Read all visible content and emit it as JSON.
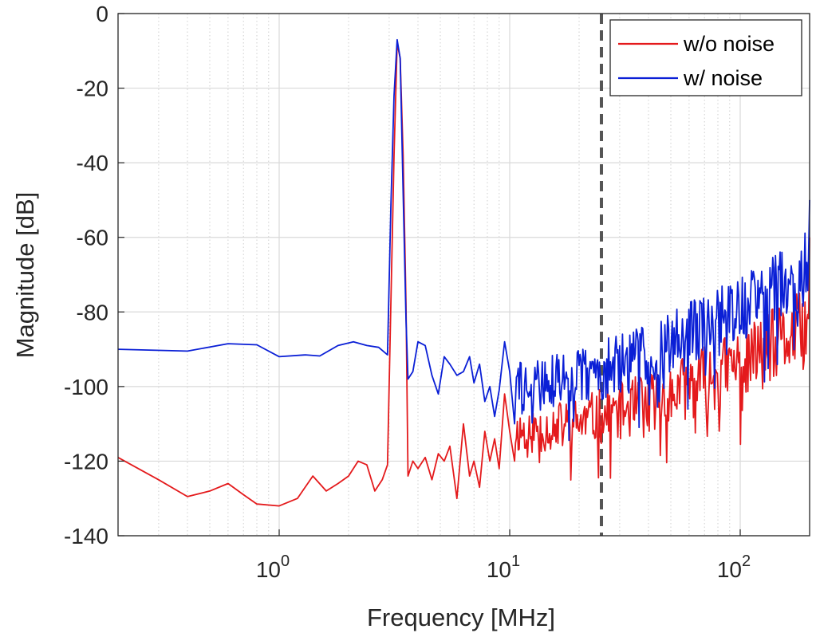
{
  "chart_data": {
    "type": "line",
    "xscale": "log",
    "xlabel": "Frequency [MHz]",
    "ylabel": "Magnitude [dB]",
    "xlim": [
      0.2,
      200
    ],
    "ylim": [
      -140,
      0
    ],
    "xticks": [
      {
        "value": 1,
        "base": "10",
        "exp": "0"
      },
      {
        "value": 10,
        "base": "10",
        "exp": "1"
      },
      {
        "value": 100,
        "base": "10",
        "exp": "2"
      }
    ],
    "yticks": [
      0,
      -20,
      -40,
      -60,
      -80,
      -100,
      -120,
      -140
    ],
    "grid": "major and minor",
    "legend_position": "top-right",
    "vline": {
      "x": 25,
      "style": "dashed",
      "color": "#555555"
    },
    "series": [
      {
        "name": "w/o noise",
        "color": "#e41a1c",
        "smooth": [
          [
            0.2,
            -119
          ],
          [
            0.3,
            -125
          ],
          [
            0.4,
            -129.5
          ],
          [
            0.5,
            -128
          ],
          [
            0.6,
            -126
          ],
          [
            0.7,
            -129
          ],
          [
            0.8,
            -131.5
          ],
          [
            1.0,
            -132
          ],
          [
            1.2,
            -130
          ],
          [
            1.4,
            -124
          ],
          [
            1.6,
            -128
          ],
          [
            1.8,
            -126
          ],
          [
            2.0,
            -124
          ],
          [
            2.2,
            -120
          ],
          [
            2.4,
            -121
          ],
          [
            2.6,
            -128
          ],
          [
            2.8,
            -125
          ],
          [
            2.95,
            -121
          ],
          [
            3.05,
            -78
          ],
          [
            3.15,
            -38
          ],
          [
            3.25,
            -8
          ],
          [
            3.35,
            -12
          ],
          [
            3.45,
            -38
          ],
          [
            3.55,
            -78
          ],
          [
            3.62,
            -124
          ],
          [
            3.8,
            -120
          ],
          [
            4.0,
            -122
          ],
          [
            4.3,
            -119
          ],
          [
            4.6,
            -125
          ],
          [
            4.9,
            -118
          ],
          [
            5.2,
            -120
          ],
          [
            5.5,
            -116
          ],
          [
            5.9,
            -130
          ],
          [
            6.3,
            -110
          ],
          [
            6.7,
            -124
          ],
          [
            7.0,
            -120
          ],
          [
            7.4,
            -127
          ],
          [
            7.8,
            -112
          ],
          [
            8.2,
            -120
          ],
          [
            8.6,
            -114
          ],
          [
            9.0,
            -122
          ],
          [
            9.5,
            -102
          ],
          [
            10.0,
            -112
          ],
          [
            10.5,
            -120
          ]
        ],
        "noise": {
          "from": 10.5,
          "to": 200,
          "points": 320,
          "base_start": -112,
          "base_end": -84,
          "amplitude_start": 6,
          "amplitude_end": 11,
          "seed": 11,
          "end_value": -60
        }
      },
      {
        "name": "w/ noise",
        "color": "#0a1fd6",
        "smooth": [
          [
            0.2,
            -90
          ],
          [
            0.4,
            -90.5
          ],
          [
            0.6,
            -88.5
          ],
          [
            0.8,
            -88.8
          ],
          [
            1.0,
            -92
          ],
          [
            1.3,
            -91.5
          ],
          [
            1.5,
            -91.8
          ],
          [
            1.8,
            -89
          ],
          [
            2.1,
            -88
          ],
          [
            2.4,
            -89
          ],
          [
            2.7,
            -89.5
          ],
          [
            2.95,
            -91.5
          ],
          [
            3.05,
            -52
          ],
          [
            3.15,
            -22
          ],
          [
            3.25,
            -7
          ],
          [
            3.35,
            -12
          ],
          [
            3.45,
            -48
          ],
          [
            3.55,
            -82
          ],
          [
            3.62,
            -98
          ],
          [
            3.8,
            -96
          ],
          [
            4.0,
            -88
          ],
          [
            4.3,
            -89
          ],
          [
            4.6,
            -97
          ],
          [
            4.9,
            -102
          ],
          [
            5.2,
            -92
          ],
          [
            5.5,
            -94
          ],
          [
            5.9,
            -97
          ],
          [
            6.3,
            -96
          ],
          [
            6.7,
            -92
          ],
          [
            7.0,
            -99
          ],
          [
            7.4,
            -94
          ],
          [
            7.8,
            -104
          ],
          [
            8.2,
            -100
          ],
          [
            8.6,
            -108
          ],
          [
            9.0,
            -101
          ],
          [
            9.5,
            -88
          ],
          [
            10.0,
            -96
          ],
          [
            10.5,
            -110
          ]
        ],
        "noise": {
          "from": 10.5,
          "to": 200,
          "points": 320,
          "base_start": -100,
          "base_end": -68,
          "amplitude_start": 7,
          "amplitude_end": 11,
          "seed": 29,
          "end_value": -50
        }
      }
    ]
  }
}
